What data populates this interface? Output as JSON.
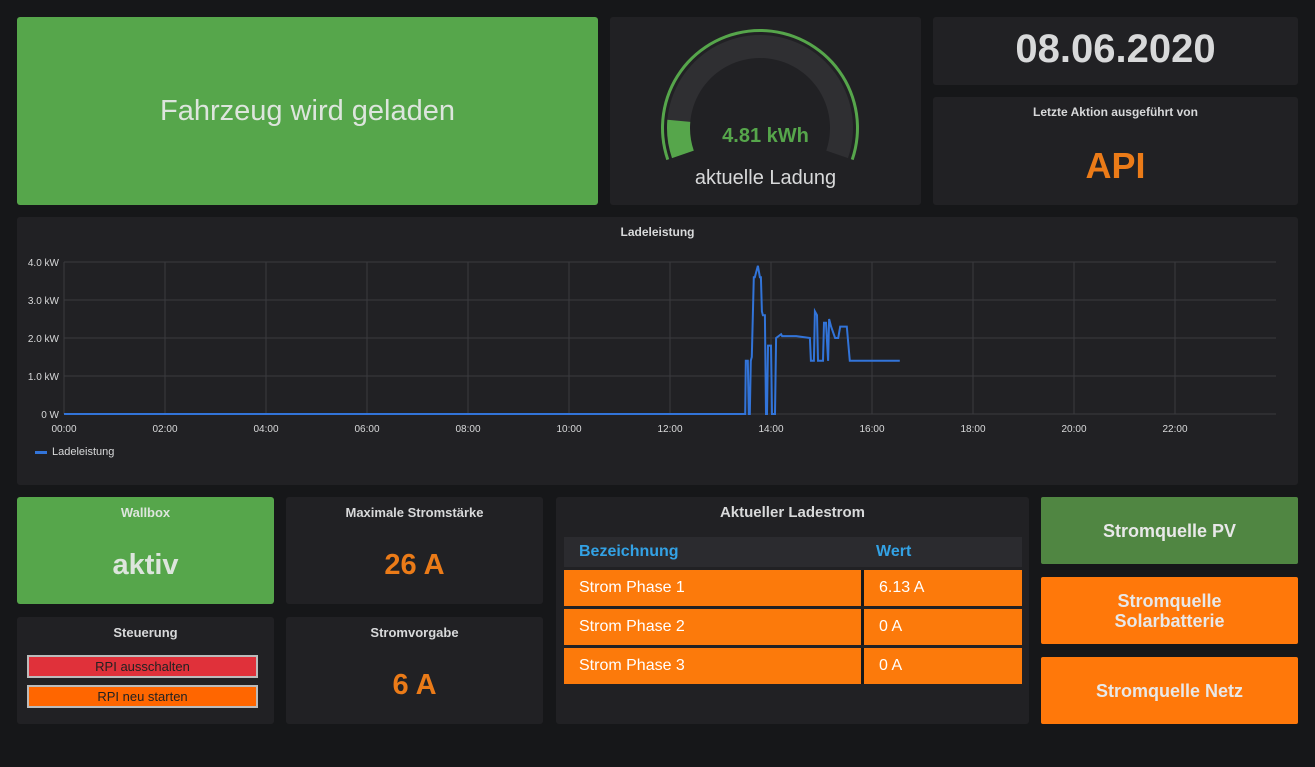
{
  "status": {
    "text": "Fahrzeug wird geladen",
    "color": "#56a64b"
  },
  "gauge": {
    "value": "4.81 kWh",
    "label": "aktuelle Ladung",
    "fill_fraction": 0.11,
    "color": "#56a64b"
  },
  "date": {
    "value": "08.06.2020"
  },
  "action": {
    "title": "Letzte Aktion ausgeführt von",
    "value": "API",
    "color": "#eb7b18"
  },
  "wallbox": {
    "title": "Wallbox",
    "value": "aktiv"
  },
  "max_current": {
    "title": "Maximale Stromstärke",
    "value": "26 A"
  },
  "control": {
    "title": "Steuerung",
    "buttons": [
      "RPI ausschalten",
      "RPI neu starten"
    ]
  },
  "current_setting": {
    "title": "Stromvorgabe",
    "value": "6 A"
  },
  "table": {
    "title": "Aktueller Ladestrom",
    "headers": [
      "Bezeichnung",
      "Wert"
    ],
    "rows": [
      [
        "Strom Phase 1",
        "6.13 A"
      ],
      [
        "Strom Phase 2",
        "0 A"
      ],
      [
        "Strom Phase 3",
        "0 A"
      ]
    ]
  },
  "sources": [
    "Stromquelle PV",
    "Stromquelle\nSolarbatterie",
    "Stromquelle Netz"
  ],
  "chart_data": {
    "type": "line",
    "title": "Ladeleistung",
    "xlabel": "",
    "ylabel": "",
    "xlim": [
      0,
      24
    ],
    "ylim": [
      0,
      4
    ],
    "x_ticks": [
      "00:00",
      "02:00",
      "04:00",
      "06:00",
      "08:00",
      "10:00",
      "12:00",
      "14:00",
      "16:00",
      "18:00",
      "20:00",
      "22:00"
    ],
    "y_ticks": [
      "0 W",
      "1.0 kW",
      "2.0 kW",
      "3.0 kW",
      "4.0 kW"
    ],
    "grid": true,
    "legend": "bottom-left",
    "series": [
      {
        "name": "Ladeleistung",
        "color": "#3274d9",
        "x": [
          0,
          13.49,
          13.5,
          13.54,
          13.56,
          13.58,
          13.6,
          13.62,
          13.66,
          13.68,
          13.74,
          13.78,
          13.8,
          13.82,
          13.84,
          13.88,
          13.9,
          13.92,
          13.94,
          13.96,
          14.0,
          14.02,
          14.04,
          14.06,
          14.08,
          14.1,
          14.2,
          14.22,
          14.5,
          14.77,
          14.79,
          14.85,
          14.87,
          14.91,
          14.93,
          15.03,
          15.05,
          15.09,
          15.13,
          15.15,
          15.19,
          15.27,
          15.33,
          15.37,
          15.5,
          15.56,
          16.0,
          16.55
        ],
        "y": [
          0,
          0,
          1.4,
          1.4,
          0,
          0,
          1.4,
          1.5,
          3.6,
          3.6,
          3.9,
          3.6,
          3.6,
          2.7,
          2.6,
          2.6,
          0,
          0,
          1.8,
          1.8,
          1.8,
          0,
          0,
          0,
          0,
          2.0,
          2.1,
          2.05,
          2.05,
          2.0,
          1.4,
          1.4,
          2.7,
          2.6,
          1.4,
          1.4,
          2.4,
          2.4,
          1.4,
          2.5,
          2.3,
          2.0,
          2.0,
          2.3,
          2.3,
          1.4,
          1.4,
          1.4
        ]
      }
    ]
  }
}
